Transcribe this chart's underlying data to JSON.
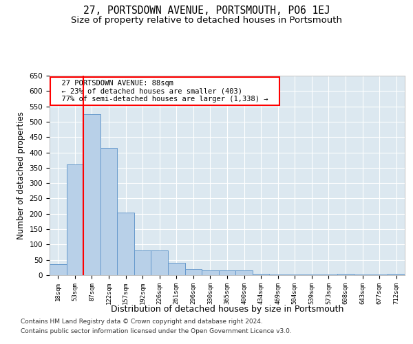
{
  "title": "27, PORTSDOWN AVENUE, PORTSMOUTH, PO6 1EJ",
  "subtitle": "Size of property relative to detached houses in Portsmouth",
  "xlabel": "Distribution of detached houses by size in Portsmouth",
  "ylabel": "Number of detached properties",
  "bar_color": "#b8d0e8",
  "bar_edge_color": "#6699cc",
  "background_color": "#dce8f0",
  "categories": [
    "18sqm",
    "53sqm",
    "87sqm",
    "122sqm",
    "157sqm",
    "192sqm",
    "226sqm",
    "261sqm",
    "296sqm",
    "330sqm",
    "365sqm",
    "400sqm",
    "434sqm",
    "469sqm",
    "504sqm",
    "539sqm",
    "573sqm",
    "608sqm",
    "643sqm",
    "677sqm",
    "712sqm"
  ],
  "values": [
    35,
    360,
    525,
    415,
    205,
    80,
    80,
    40,
    20,
    15,
    15,
    15,
    5,
    2,
    2,
    2,
    2,
    5,
    2,
    2,
    5
  ],
  "red_line_x": 1.5,
  "annotation_text": "  27 PORTSDOWN AVENUE: 88sqm  \n  ← 23% of detached houses are smaller (403)  \n  77% of semi-detached houses are larger (1,338) →  ",
  "annotation_box_color": "white",
  "annotation_box_edge": "red",
  "ylim": [
    0,
    650
  ],
  "yticks": [
    0,
    50,
    100,
    150,
    200,
    250,
    300,
    350,
    400,
    450,
    500,
    550,
    600,
    650
  ],
  "footer1": "Contains HM Land Registry data © Crown copyright and database right 2024.",
  "footer2": "Contains public sector information licensed under the Open Government Licence v3.0.",
  "title_fontsize": 10.5,
  "subtitle_fontsize": 9.5,
  "xlabel_fontsize": 9,
  "ylabel_fontsize": 8.5,
  "annotation_fontsize": 7.5,
  "footer_fontsize": 6.5
}
